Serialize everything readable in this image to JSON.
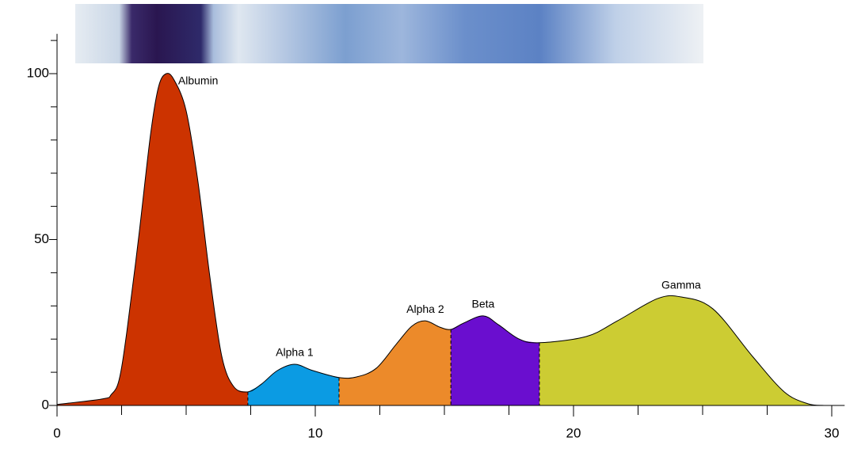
{
  "chart_data": {
    "type": "area",
    "x": [
      0,
      1.78,
      2.1,
      2.4,
      2.7,
      3.16,
      3.62,
      3.93,
      4.23,
      4.54,
      5.0,
      5.46,
      5.92,
      6.38,
      6.84,
      7.39,
      7.91,
      8.53,
      9.2,
      9.91,
      10.92,
      11.6,
      12.36,
      13.13,
      13.74,
      14.26,
      14.82,
      15.25,
      15.74,
      16.5,
      17.1,
      17.9,
      18.68,
      20.5,
      21.7,
      23.25,
      24.17,
      25.4,
      26.93,
      28.16,
      29.08,
      29.7
    ],
    "values": [
      0.3,
      2,
      3.3,
      7.6,
      22,
      50.6,
      81.6,
      96,
      100,
      98,
      88.8,
      67.3,
      38.7,
      14.8,
      5.7,
      4.1,
      6.4,
      10.5,
      12.4,
      10.5,
      8.4,
      8.6,
      11.2,
      18.4,
      23.9,
      25.5,
      23.6,
      22.9,
      24.8,
      27,
      24.3,
      20,
      18.9,
      20.8,
      25.5,
      32.2,
      32.7,
      29.1,
      14.8,
      4.1,
      0.5,
      0
    ],
    "segments": [
      {
        "name": "Albumin",
        "start": 0,
        "end": 7.39,
        "color": "#cc3300"
      },
      {
        "name": "Alpha 1",
        "start": 7.39,
        "end": 10.92,
        "color": "#0b9be3"
      },
      {
        "name": "Alpha 2",
        "start": 10.92,
        "end": 15.25,
        "color": "#ec8a2a"
      },
      {
        "name": "Beta",
        "start": 15.25,
        "end": 18.68,
        "color": "#6a0ecf"
      },
      {
        "name": "Gamma",
        "start": 18.68,
        "end": 29.7,
        "color": "#cccc33"
      }
    ],
    "xlim": [
      0,
      30.5
    ],
    "ylim": [
      0,
      112
    ],
    "xticks": [
      0,
      10,
      20,
      30
    ],
    "xminor_ticks": [
      2.5,
      5,
      7.5,
      12.5,
      15,
      17.5,
      22.5,
      25,
      27.5
    ],
    "yticks": [
      0,
      50,
      100
    ],
    "yminor_ticks": [
      10,
      20,
      30,
      40,
      60,
      70,
      80,
      90,
      110
    ]
  }
}
